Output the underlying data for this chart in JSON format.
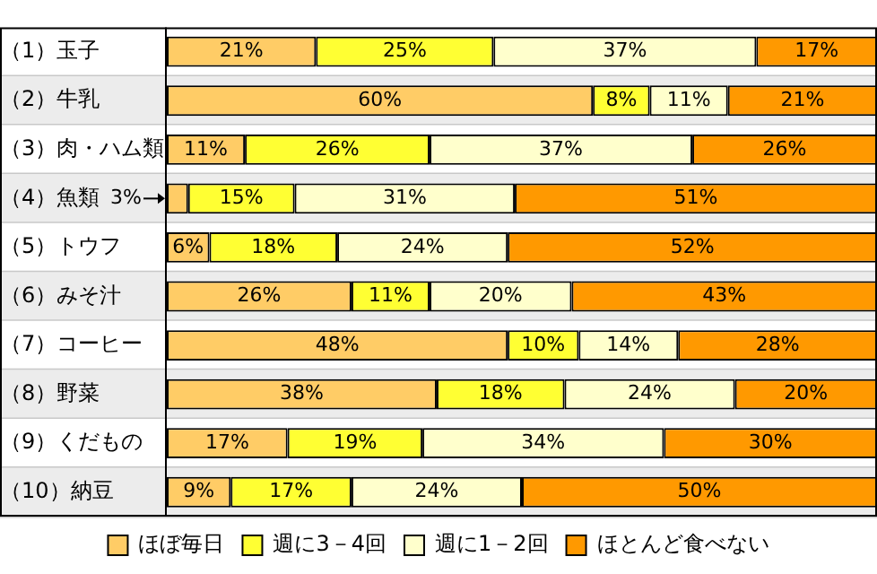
{
  "chart_data": {
    "type": "bar",
    "orientation": "horizontal",
    "stacked": true,
    "legend": "bottom",
    "categories": [
      "（1）玉子",
      "（2）牛乳",
      "（3）肉・ハム類",
      "（4）魚類",
      "（5）トウフ",
      "（6）みそ汁",
      "（7）コーヒー",
      "（8）野菜",
      "（9）くだもの",
      "（10）納豆"
    ],
    "series": [
      {
        "name": "ほぼ毎日",
        "color": "#ffcc66",
        "values": [
          21,
          60,
          11,
          3,
          6,
          26,
          48,
          38,
          17,
          9
        ],
        "value_labels": [
          "21%",
          "60%",
          "11%",
          "3%",
          "6%",
          "26%",
          "48%",
          "38%",
          "17%",
          "9%"
        ]
      },
      {
        "name": "週に3－4回",
        "color": "#ffff33",
        "values": [
          25,
          8,
          26,
          15,
          18,
          11,
          10,
          18,
          19,
          17
        ],
        "value_labels": [
          "25%",
          "8%",
          "26%",
          "15%",
          "18%",
          "11%",
          "10%",
          "18%",
          "19%",
          "17%"
        ]
      },
      {
        "name": "週に1－2回",
        "color": "#ffffcc",
        "values": [
          37,
          11,
          37,
          31,
          24,
          20,
          14,
          24,
          34,
          24
        ],
        "value_labels": [
          "37%",
          "11%",
          "37%",
          "31%",
          "24%",
          "20%",
          "14%",
          "24%",
          "34%",
          "24%"
        ]
      },
      {
        "name": "ほとんど食べない",
        "color": "#ff9900",
        "values": [
          17,
          21,
          26,
          51,
          52,
          43,
          28,
          20,
          30,
          50
        ],
        "value_labels": [
          "17%",
          "21%",
          "26%",
          "51%",
          "52%",
          "43%",
          "28%",
          "20%",
          "30%",
          "50%"
        ]
      }
    ]
  }
}
